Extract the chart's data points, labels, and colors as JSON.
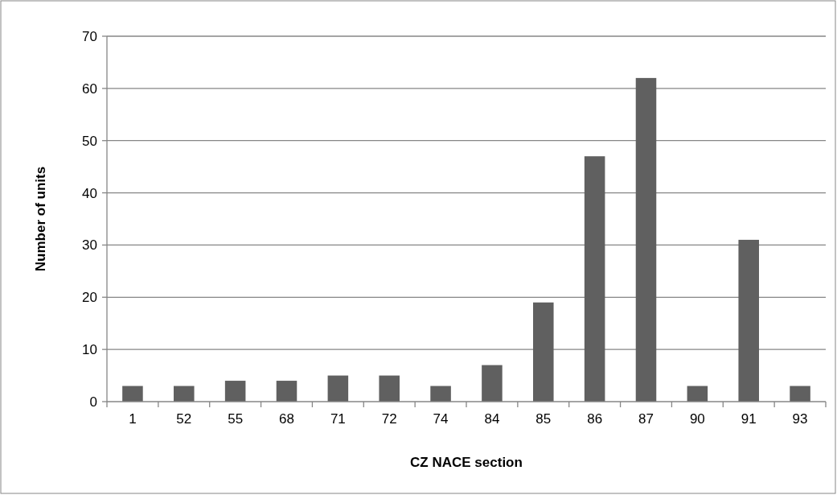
{
  "chart_data": {
    "type": "bar",
    "xlabel": "CZ NACE section",
    "ylabel": "Number of units",
    "categories": [
      "1",
      "52",
      "55",
      "68",
      "71",
      "72",
      "74",
      "84",
      "85",
      "86",
      "87",
      "90",
      "91",
      "93"
    ],
    "values": [
      3,
      3,
      4,
      4,
      5,
      5,
      3,
      7,
      19,
      47,
      62,
      3,
      31,
      3
    ],
    "color": "#606060",
    "ylim": [
      0,
      70
    ],
    "yticks": [
      0,
      10,
      20,
      30,
      40,
      50,
      60,
      70
    ],
    "grid": "y"
  }
}
